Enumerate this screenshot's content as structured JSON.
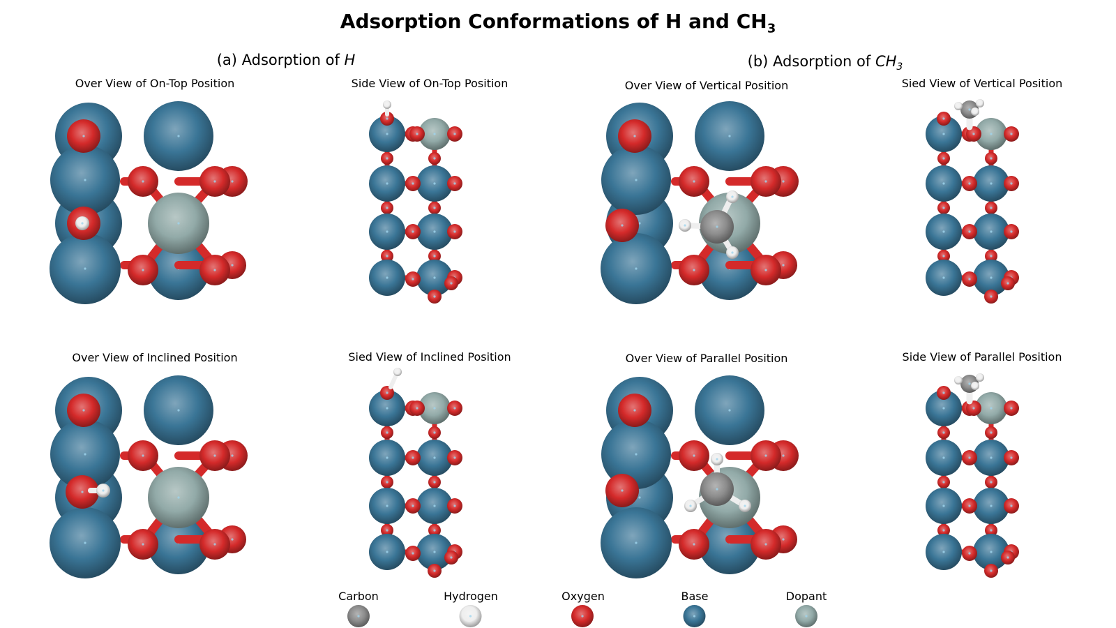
{
  "title": {
    "main": "Adsorption Conformations of H and CH",
    "sub": "3"
  },
  "sections": {
    "a": {
      "prefix": "(a) Adsorption of ",
      "species": "H"
    },
    "b": {
      "prefix": "(b) Adsorption of ",
      "species": "CH",
      "sub": "3"
    }
  },
  "panels": [
    {
      "title": "Over View of On-Top Position"
    },
    {
      "title": "Side View of On-Top Position"
    },
    {
      "title": "Over View of Vertical Position"
    },
    {
      "title": "Sied View of Vertical Position"
    },
    {
      "title": "Over View of Inclined Position"
    },
    {
      "title": "Sied View of Inclined Position"
    },
    {
      "title": "Over View of Parallel Position"
    },
    {
      "title": "Side View of Parallel Position"
    }
  ],
  "legend": [
    {
      "label": "Carbon",
      "color": "#8c8c8c"
    },
    {
      "label": "Hydrogen",
      "color": "#eeeeee"
    },
    {
      "label": "Oxygen",
      "color": "#d42a2a"
    },
    {
      "label": "Base",
      "color": "#3a7596"
    },
    {
      "label": "Dopant",
      "color": "#92aaa8"
    }
  ],
  "colors": {
    "carbon": "#8c8c8c",
    "hydrogen": "#eeeeee",
    "oxygen": "#d42a2a",
    "base": "#3a7596",
    "dopant": "#92aaa8"
  }
}
